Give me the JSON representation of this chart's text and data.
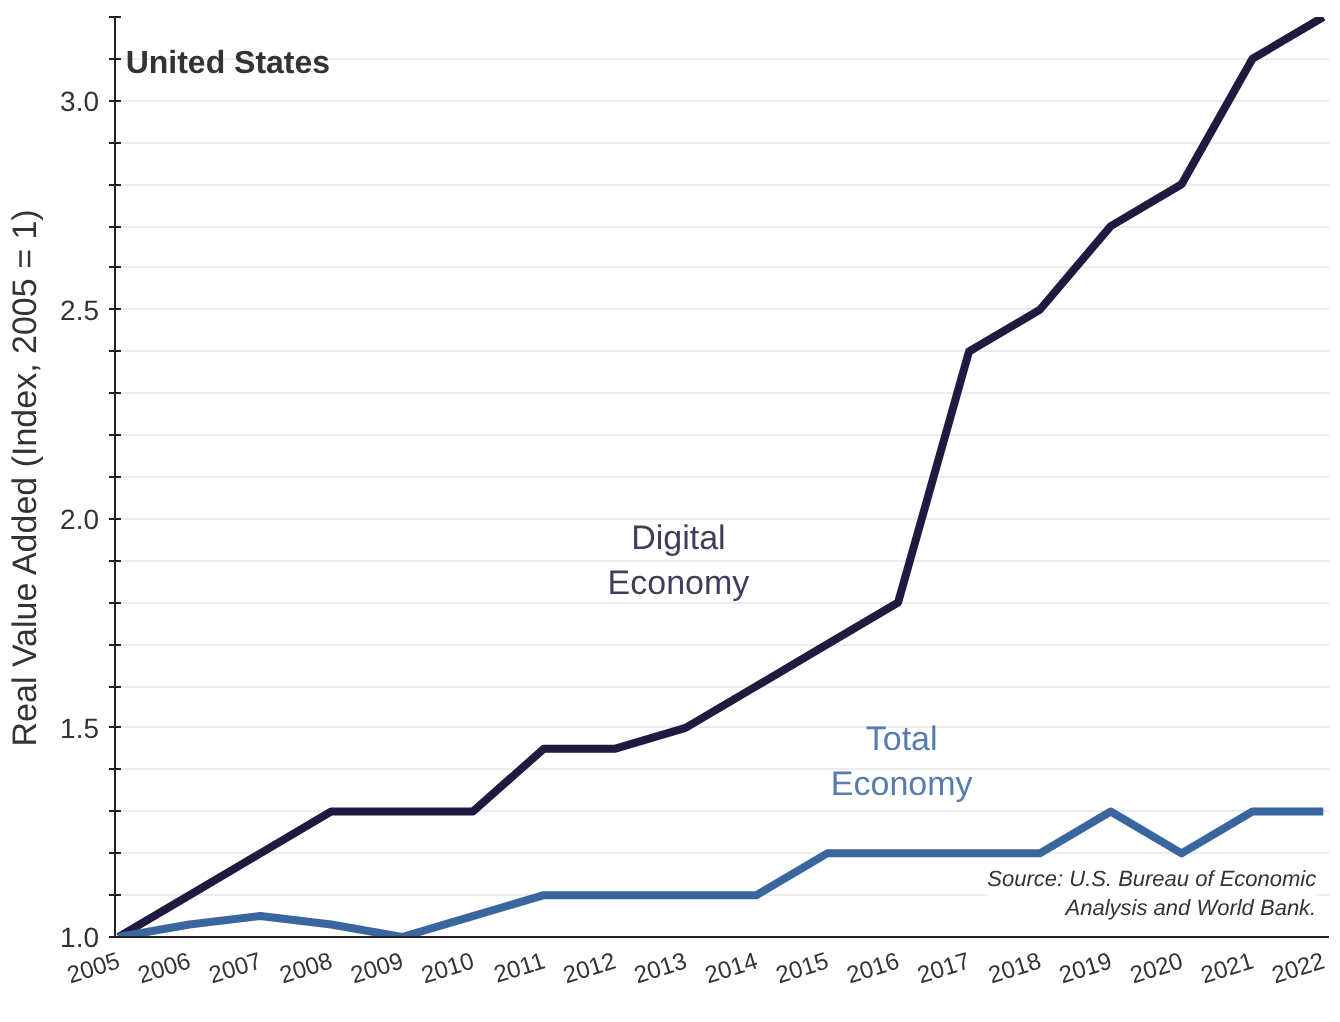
{
  "chart_data": {
    "type": "line",
    "title": "United States",
    "ylabel": "Real Value Added (Index, 2005 = 1)",
    "categories": [
      "2005",
      "2006",
      "2007",
      "2008",
      "2009",
      "2010",
      "2011",
      "2012",
      "2013",
      "2014",
      "2015",
      "2016",
      "2017",
      "2018",
      "2019",
      "2020",
      "2021",
      "2022"
    ],
    "series": [
      {
        "name": "Digital Economy",
        "color": "#1f1a3f",
        "values": [
          1.0,
          1.1,
          1.2,
          1.3,
          1.3,
          1.3,
          1.45,
          1.45,
          1.5,
          1.6,
          1.7,
          1.8,
          2.4,
          2.5,
          2.7,
          2.8,
          3.1,
          3.2
        ]
      },
      {
        "name": "Total Economy",
        "color": "#3a66a0",
        "values": [
          1.0,
          1.03,
          1.05,
          1.03,
          1.0,
          1.05,
          1.1,
          1.1,
          1.1,
          1.1,
          1.2,
          1.2,
          1.2,
          1.2,
          1.3,
          1.2,
          1.3,
          1.3
        ]
      }
    ],
    "ylim": [
      1.0,
      3.2
    ],
    "yticks": [
      {
        "value": 1.0,
        "label": "1.0"
      },
      {
        "value": 1.1,
        "label": null
      },
      {
        "value": 1.2,
        "label": null
      },
      {
        "value": 1.3,
        "label": null
      },
      {
        "value": 1.4,
        "label": null
      },
      {
        "value": 1.5,
        "label": "1.5"
      },
      {
        "value": 1.6,
        "label": null
      },
      {
        "value": 1.7,
        "label": null
      },
      {
        "value": 1.8,
        "label": null
      },
      {
        "value": 1.9,
        "label": null
      },
      {
        "value": 2.0,
        "label": "2.0"
      },
      {
        "value": 2.1,
        "label": null
      },
      {
        "value": 2.2,
        "label": null
      },
      {
        "value": 2.3,
        "label": null
      },
      {
        "value": 2.4,
        "label": null
      },
      {
        "value": 2.5,
        "label": "2.5"
      },
      {
        "value": 2.6,
        "label": null
      },
      {
        "value": 2.7,
        "label": null
      },
      {
        "value": 2.8,
        "label": null
      },
      {
        "value": 2.9,
        "label": null
      },
      {
        "value": 3.0,
        "label": "3.0"
      },
      {
        "value": 3.1,
        "label": null
      },
      {
        "value": 3.2,
        "label": null
      }
    ],
    "grid": "y",
    "marker": "none",
    "line_style": "solid",
    "annotations": [
      "Source: U.S. Bureau of Economic\nAnalysis and World Bank."
    ]
  }
}
